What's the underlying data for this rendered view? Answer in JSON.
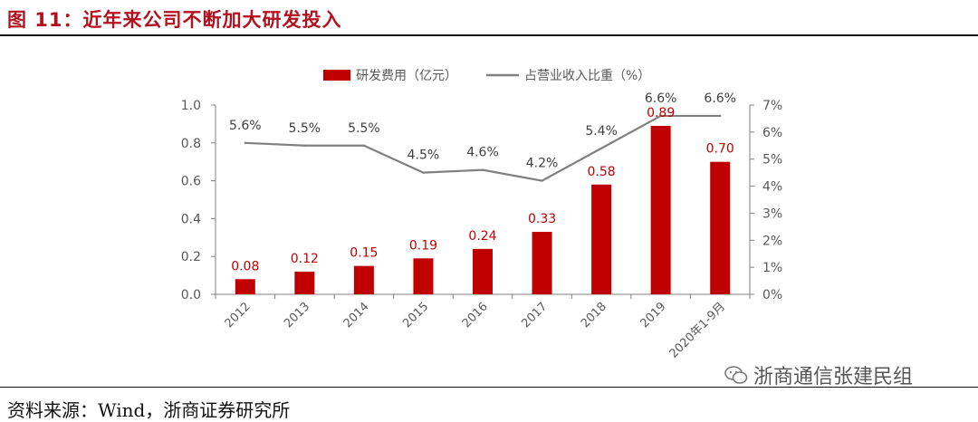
{
  "figure": {
    "title": "图 11：近年来公司不断加大研发投入",
    "source": "资料来源：Wind，浙商证券研究所",
    "watermark": "浙商通信张建民组"
  },
  "chart_data": {
    "type": "bar+line",
    "categories": [
      "2012",
      "2013",
      "2014",
      "2015",
      "2016",
      "2017",
      "2018",
      "2019",
      "2020年1-9月"
    ],
    "series": [
      {
        "name": "研发费用（亿元）",
        "type": "bar",
        "axis": "left",
        "color": "#c00000",
        "values": [
          0.08,
          0.12,
          0.15,
          0.19,
          0.24,
          0.33,
          0.58,
          0.89,
          0.7
        ],
        "labels": [
          "0.08",
          "0.12",
          "0.15",
          "0.19",
          "0.24",
          "0.33",
          "0.58",
          "0.89",
          "0.70"
        ]
      },
      {
        "name": "占营业收入比重（%）",
        "type": "line",
        "axis": "right",
        "color": "#808080",
        "values": [
          5.6,
          5.5,
          5.5,
          4.5,
          4.6,
          4.2,
          5.4,
          6.6,
          6.6
        ],
        "labels": [
          "5.6%",
          "5.5%",
          "5.5%",
          "4.5%",
          "4.6%",
          "4.2%",
          "5.4%",
          "6.6%",
          "6.6%"
        ]
      }
    ],
    "y_left": {
      "min": 0,
      "max": 1.0,
      "ticks": [
        "0.0",
        "0.2",
        "0.4",
        "0.6",
        "0.8",
        "1.0"
      ]
    },
    "y_right": {
      "min": 0,
      "max": 7,
      "ticks": [
        "0%",
        "1%",
        "2%",
        "3%",
        "4%",
        "5%",
        "6%",
        "7%"
      ]
    },
    "legend_position": "top-center",
    "grid": false
  }
}
